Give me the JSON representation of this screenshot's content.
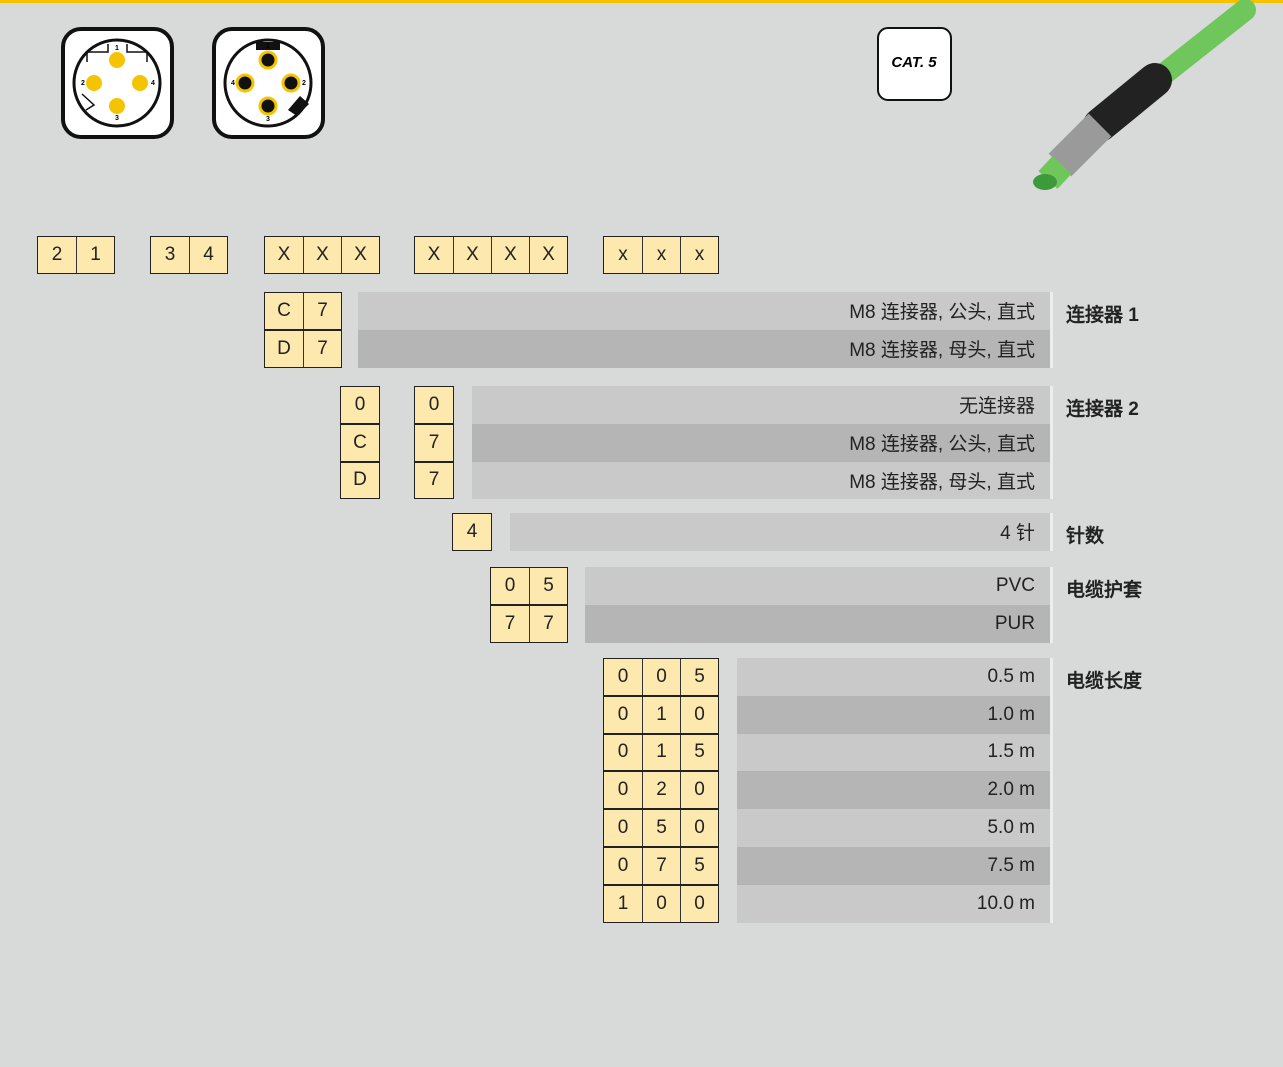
{
  "header": {
    "cat_badge": "CAT. 5",
    "pin_labels": [
      [
        "1",
        "2",
        "3",
        "4"
      ],
      [
        "1",
        "4",
        "2",
        "3"
      ]
    ]
  },
  "code_groups": [
    [
      "2",
      "1"
    ],
    [
      "3",
      "4"
    ],
    [
      "X",
      "X",
      "X"
    ],
    [
      "X",
      "X",
      "X",
      "X"
    ],
    [
      "x",
      "x",
      "x"
    ]
  ],
  "sections": [
    {
      "label": "连接器 1",
      "rows": [
        {
          "codes": [
            [
              "C",
              "7"
            ]
          ],
          "description": "M8 连接器, 公头, 直式"
        },
        {
          "codes": [
            [
              "D",
              "7"
            ]
          ],
          "description": "M8 连接器, 母头, 直式"
        }
      ]
    },
    {
      "label": "连接器 2",
      "rows": [
        {
          "codes": [
            [
              "0"
            ],
            [
              "0"
            ]
          ],
          "description": "无连接器"
        },
        {
          "codes": [
            [
              "C"
            ],
            [
              "7"
            ]
          ],
          "description": "M8 连接器, 公头, 直式"
        },
        {
          "codes": [
            [
              "D"
            ],
            [
              "7"
            ]
          ],
          "description": "M8 连接器, 母头, 直式"
        }
      ]
    },
    {
      "label": "针数",
      "rows": [
        {
          "codes": [
            [
              "4"
            ]
          ],
          "description": "4 针"
        }
      ]
    },
    {
      "label": "电缆护套",
      "rows": [
        {
          "codes": [
            [
              "0",
              "5"
            ]
          ],
          "description": "PVC"
        },
        {
          "codes": [
            [
              "7",
              "7"
            ]
          ],
          "description": "PUR"
        }
      ]
    },
    {
      "label": "电缆长度",
      "rows": [
        {
          "codes": [
            [
              "0",
              "0",
              "5"
            ]
          ],
          "description": "0.5 m"
        },
        {
          "codes": [
            [
              "0",
              "1",
              "0"
            ]
          ],
          "description": "1.0 m"
        },
        {
          "codes": [
            [
              "0",
              "1",
              "5"
            ]
          ],
          "description": "1.5 m"
        },
        {
          "codes": [
            [
              "0",
              "2",
              "0"
            ]
          ],
          "description": "2.0 m"
        },
        {
          "codes": [
            [
              "0",
              "5",
              "0"
            ]
          ],
          "description": "5.0 m"
        },
        {
          "codes": [
            [
              "0",
              "7",
              "5"
            ]
          ],
          "description": "7.5 m"
        },
        {
          "codes": [
            [
              "1",
              "0",
              "0"
            ]
          ],
          "description": "10.0 m"
        }
      ]
    }
  ]
}
